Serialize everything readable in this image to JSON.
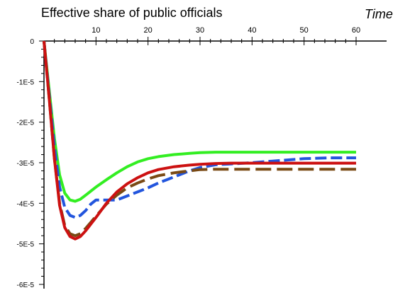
{
  "chart_data": {
    "type": "line",
    "title": "Effective share of public officials",
    "xlabel": "Time",
    "ylabel": "",
    "xlim": [
      0,
      60
    ],
    "ylim": [
      -6e-05,
      0
    ],
    "x_axis_position": "top",
    "grid": false,
    "legend": "none",
    "x_ticks": [
      10,
      20,
      30,
      40,
      50,
      60
    ],
    "y_ticks": [
      0,
      -1e-05,
      -2e-05,
      -3e-05,
      -4e-05,
      -5e-05,
      -6e-05
    ],
    "y_tick_labels": [
      "0",
      "-1E-5",
      "-2E-5",
      "-3E-5",
      "-4E-5",
      "-5E-5",
      "-6E-5"
    ],
    "series": [
      {
        "color": "#33ee22",
        "dash": "solid",
        "x": [
          0,
          1,
          2,
          3,
          4,
          5,
          6,
          7,
          8,
          10,
          12,
          14,
          16,
          18,
          20,
          22,
          25,
          28,
          30,
          33,
          36,
          40,
          45,
          50,
          55,
          60
        ],
        "y": [
          0,
          -1.2e-05,
          -2.4e-05,
          -3.3e-05,
          -3.75e-05,
          -3.92e-05,
          -3.95e-05,
          -3.9e-05,
          -3.8e-05,
          -3.6e-05,
          -3.42e-05,
          -3.25e-05,
          -3.1e-05,
          -2.98e-05,
          -2.9e-05,
          -2.85e-05,
          -2.8e-05,
          -2.77e-05,
          -2.75e-05,
          -2.74e-05,
          -2.74e-05,
          -2.74e-05,
          -2.74e-05,
          -2.74e-05,
          -2.74e-05,
          -2.74e-05
        ]
      },
      {
        "color": "#2255dd",
        "dash": "dashed",
        "x": [
          0,
          1,
          2,
          3,
          4,
          5,
          6,
          7,
          8,
          9,
          10,
          12,
          14,
          16,
          18,
          20,
          22,
          25,
          28,
          30,
          33,
          36,
          40,
          45,
          50,
          55,
          60
        ],
        "y": [
          0,
          -1.3e-05,
          -2.6e-05,
          -3.6e-05,
          -4.1e-05,
          -4.3e-05,
          -4.35e-05,
          -4.3e-05,
          -4.18e-05,
          -4.02e-05,
          -3.92e-05,
          -3.92e-05,
          -3.92e-05,
          -3.82e-05,
          -3.72e-05,
          -3.62e-05,
          -3.5e-05,
          -3.35e-05,
          -3.2e-05,
          -3.12e-05,
          -3.05e-05,
          -3.03e-05,
          -3e-05,
          -2.95e-05,
          -2.9e-05,
          -2.88e-05,
          -2.88e-05
        ]
      },
      {
        "color": "#7a4a14",
        "dash": "longdash",
        "x": [
          0,
          1,
          2,
          3,
          4,
          5,
          6,
          7,
          8,
          10,
          12,
          14,
          16,
          18,
          20,
          22,
          25,
          28,
          30,
          33,
          36,
          40,
          45,
          50,
          55,
          60
        ],
        "y": [
          0,
          -1.4e-05,
          -2.9e-05,
          -4e-05,
          -4.55e-05,
          -4.75e-05,
          -4.8e-05,
          -4.75e-05,
          -4.62e-05,
          -4.32e-05,
          -4.02e-05,
          -3.8e-05,
          -3.62e-05,
          -3.5e-05,
          -3.4e-05,
          -3.32e-05,
          -3.25e-05,
          -3.2e-05,
          -3.17e-05,
          -3.16e-05,
          -3.16e-05,
          -3.16e-05,
          -3.16e-05,
          -3.16e-05,
          -3.16e-05,
          -3.16e-05
        ]
      },
      {
        "color": "#cc1111",
        "dash": "solid",
        "x": [
          0,
          1,
          2,
          3,
          4,
          5,
          6,
          7,
          8,
          10,
          12,
          14,
          16,
          18,
          20,
          22,
          25,
          28,
          30,
          33,
          36,
          40,
          45,
          50,
          55,
          60
        ],
        "y": [
          0,
          -1.4e-05,
          -2.9e-05,
          -4.05e-05,
          -4.6e-05,
          -4.82e-05,
          -4.88e-05,
          -4.82e-05,
          -4.68e-05,
          -4.35e-05,
          -4e-05,
          -3.72e-05,
          -3.52e-05,
          -3.37e-05,
          -3.25e-05,
          -3.17e-05,
          -3.1e-05,
          -3.06e-05,
          -3.04e-05,
          -3.02e-05,
          -3.01e-05,
          -3.01e-05,
          -3.01e-05,
          -3.01e-05,
          -3.01e-05,
          -3.01e-05
        ]
      }
    ]
  }
}
